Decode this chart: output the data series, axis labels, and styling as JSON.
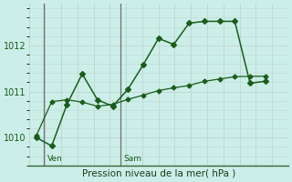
{
  "xlabel": "Pression niveau de la mer( hPa )",
  "background_color": "#cceee8",
  "grid_color": "#c0d8d4",
  "line_color": "#1a5c1a",
  "spine_color": "#336633",
  "yticks": [
    1010,
    1011,
    1012
  ],
  "ylim": [
    1009.4,
    1012.9
  ],
  "xlim": [
    -0.5,
    16.5
  ],
  "series1_x": [
    0,
    1,
    2,
    3,
    4,
    5,
    6,
    7,
    8,
    9,
    10,
    11,
    12,
    13,
    14,
    15
  ],
  "series1_y": [
    1010.0,
    1009.82,
    1010.72,
    1011.38,
    1010.82,
    1010.68,
    1011.05,
    1011.58,
    1012.15,
    1012.02,
    1012.48,
    1012.52,
    1012.52,
    1012.52,
    1011.18,
    1011.22
  ],
  "series2_x": [
    0,
    1,
    2,
    3,
    4,
    5,
    6,
    7,
    8,
    9,
    10,
    11,
    12,
    13,
    14,
    15
  ],
  "series2_y": [
    1010.05,
    1010.78,
    1010.82,
    1010.77,
    1010.68,
    1010.72,
    1010.83,
    1010.92,
    1011.02,
    1011.08,
    1011.13,
    1011.22,
    1011.27,
    1011.32,
    1011.33,
    1011.33
  ],
  "ven_x": 0.5,
  "sam_x": 5.5,
  "vline_color": "#707070",
  "num_x_grid": 16,
  "marker_size1": 3.0,
  "marker_size2": 2.5,
  "lw1": 1.1,
  "lw2": 0.9
}
